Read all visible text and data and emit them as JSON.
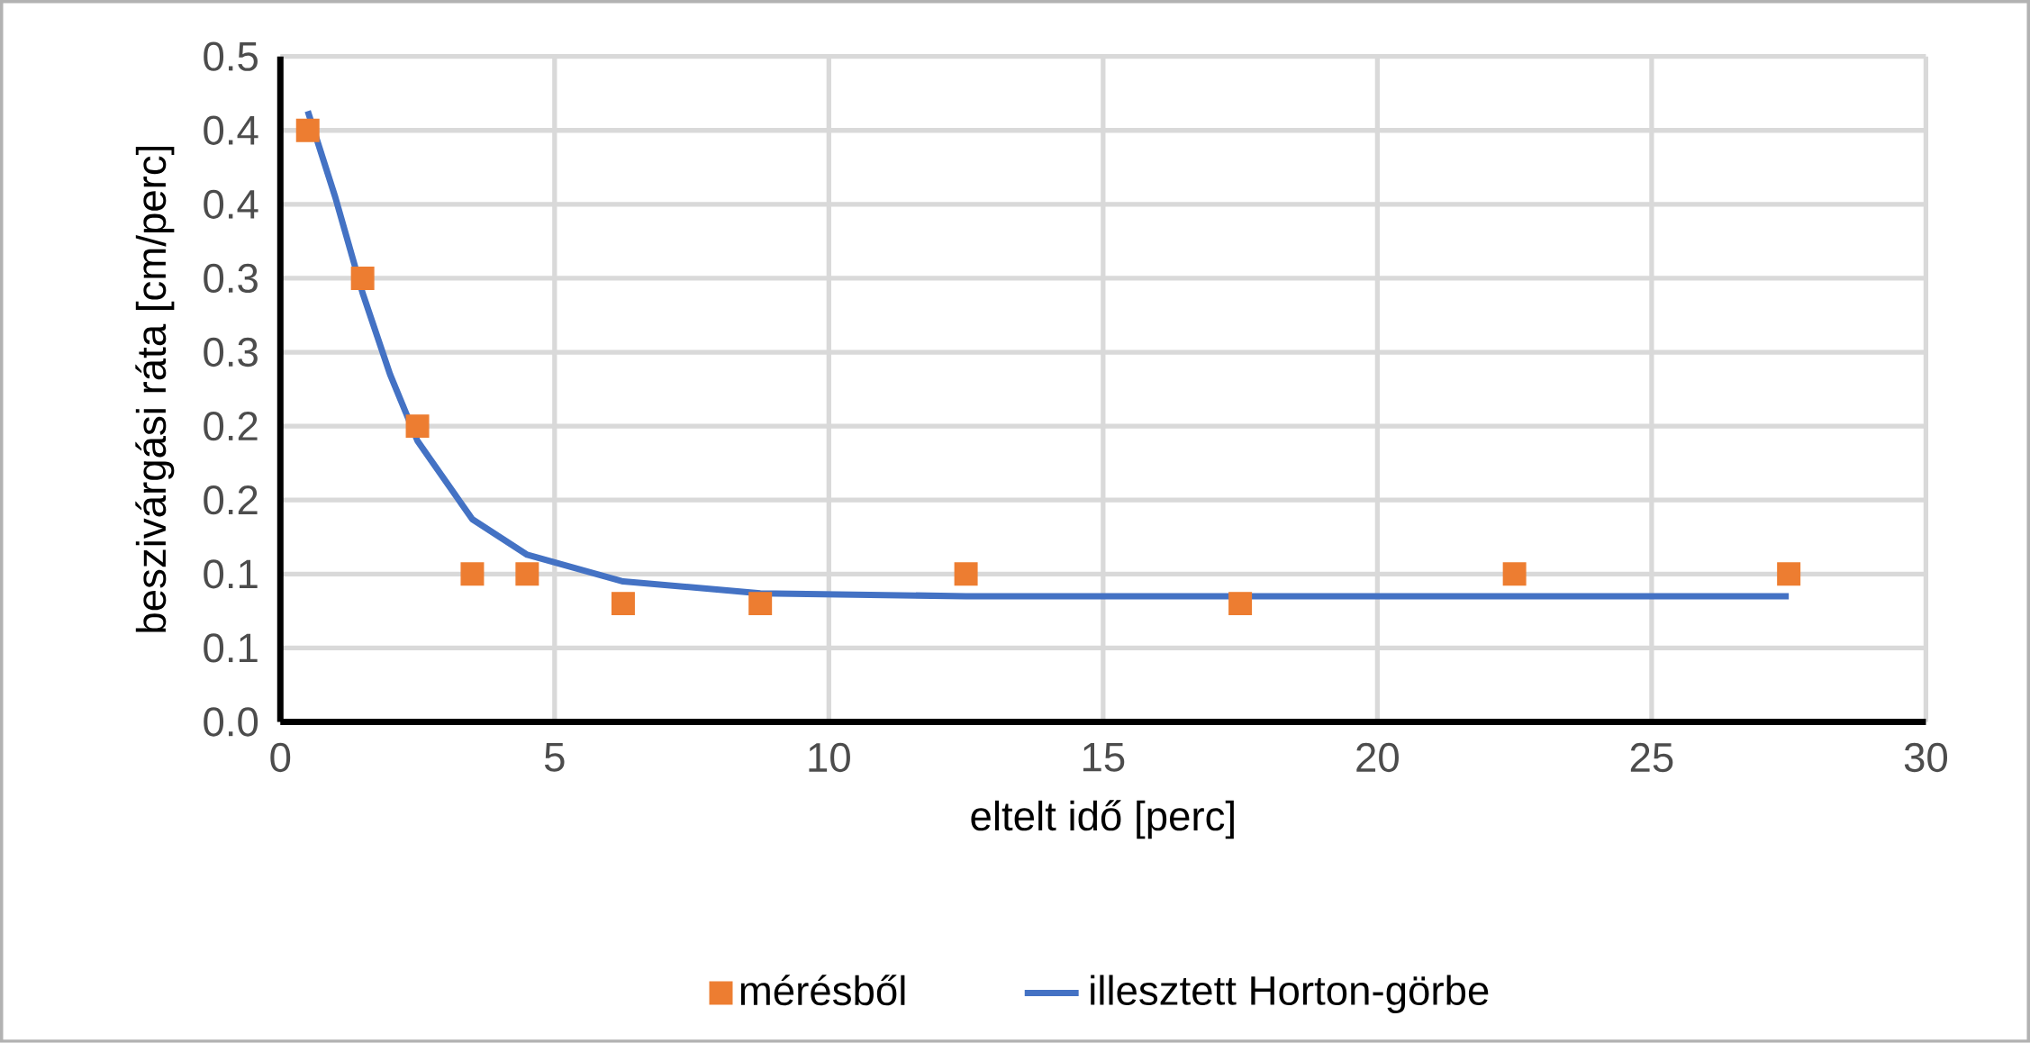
{
  "chart_data": {
    "type": "scatter",
    "xlabel": "eltelt idő [perc]",
    "ylabel": "beszivárgási ráta [cm/perc]",
    "xlim": [
      0,
      30
    ],
    "xticks": [
      0,
      5,
      10,
      15,
      20,
      25,
      30
    ],
    "ylim": [
      0,
      0.45
    ],
    "yticks": [
      {
        "value": 0,
        "label": "0.0"
      },
      {
        "value": 0.05,
        "label": "0.1"
      },
      {
        "value": 0.1,
        "label": "0.1"
      },
      {
        "value": 0.15,
        "label": "0.2"
      },
      {
        "value": 0.2,
        "label": "0.2"
      },
      {
        "value": 0.25,
        "label": "0.3"
      },
      {
        "value": 0.3,
        "label": "0.3"
      },
      {
        "value": 0.35,
        "label": "0.4"
      },
      {
        "value": 0.4,
        "label": "0.4"
      },
      {
        "value": 0.45,
        "label": "0.5"
      }
    ],
    "grid": true,
    "legend": "bottom",
    "series": [
      {
        "name": "mérésből",
        "marker": "square",
        "color": "#ed7d31",
        "x": [
          0.5,
          1.5,
          2.5,
          3.5,
          4.5,
          6.25,
          8.75,
          12.5,
          17.5,
          22.5,
          27.5
        ],
        "values": [
          0.4,
          0.3,
          0.2,
          0.1,
          0.1,
          0.08,
          0.08,
          0.1,
          0.08,
          0.1,
          0.1
        ]
      },
      {
        "name": "illesztett Horton-görbe",
        "type": "line",
        "marker": "none",
        "color": "#4472c4",
        "x": [
          0.5,
          1.0,
          1.5,
          2.0,
          2.5,
          3.5,
          4.5,
          6.25,
          8.75,
          12.5,
          22.5,
          27.5
        ],
        "values": [
          0.413,
          0.355,
          0.29,
          0.235,
          0.19,
          0.137,
          0.113,
          0.095,
          0.087,
          0.085,
          0.085,
          0.085
        ]
      }
    ]
  }
}
